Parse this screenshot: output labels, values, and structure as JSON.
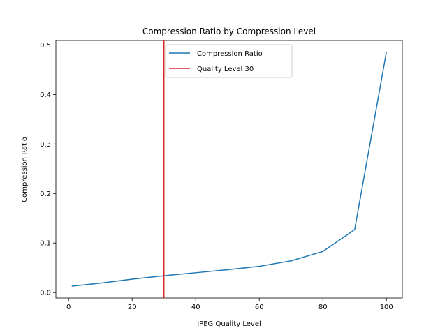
{
  "chart_data": {
    "type": "line",
    "title": "Compression Ratio by Compression Level",
    "xlabel": "JPEG Quality Level",
    "ylabel": "Compression Ratio",
    "xlim": [
      -4,
      105
    ],
    "ylim": [
      -0.011,
      0.509
    ],
    "x_ticks": [
      0,
      20,
      40,
      60,
      80,
      100
    ],
    "x_tick_labels": [
      "0",
      "20",
      "40",
      "60",
      "80",
      "100"
    ],
    "y_ticks": [
      0.0,
      0.1,
      0.2,
      0.3,
      0.4,
      0.5
    ],
    "y_tick_labels": [
      "0.0",
      "0.1",
      "0.2",
      "0.3",
      "0.4",
      "0.5"
    ],
    "grid": false,
    "legend_placement": "upper-center",
    "series": [
      {
        "name": "Compression Ratio",
        "color": "#1f77b4",
        "x": [
          1,
          10,
          20,
          30,
          40,
          50,
          60,
          70,
          80,
          90,
          100
        ],
        "y": [
          0.013,
          0.019,
          0.027,
          0.034,
          0.04,
          0.046,
          0.053,
          0.064,
          0.083,
          0.127,
          0.486
        ]
      }
    ],
    "vlines": [
      {
        "name": "Quality Level 30",
        "color": "#d62728",
        "x": 30
      }
    ]
  }
}
